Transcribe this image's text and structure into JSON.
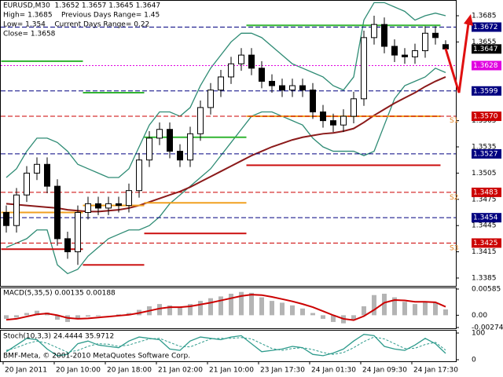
{
  "chart_data": {
    "type": "candlestick",
    "title": "EURUSD,M30  1.3652 1.3657 1.3645 1.3647",
    "info": [
      "High= 1.3685    Previous Days Range= 1.45",
      "Low= 1.354    Current Days Range= 0.22",
      "Close= 1.3658"
    ],
    "xticks": [
      {
        "value": 0,
        "label": "20 Jan 2011"
      },
      {
        "value": 5,
        "label": "20 Jan 10:00"
      },
      {
        "value": 10,
        "label": "20 Jan 18:00"
      },
      {
        "value": 15,
        "label": "21 Jan 02:00"
      },
      {
        "value": 20,
        "label": "21 Jan 10:00"
      },
      {
        "value": 25,
        "label": "23 Jan 17:30"
      },
      {
        "value": 30,
        "label": "24 Jan 01:30"
      },
      {
        "value": 35,
        "label": "24 Jan 09:30"
      },
      {
        "value": 40,
        "label": "24 Jan 17:30"
      }
    ],
    "ylim": [
      1.3376,
      1.3703
    ],
    "yticks": [
      1.3685,
      1.3655,
      1.3565,
      1.3535,
      1.3505,
      1.3475,
      1.3445,
      1.3415,
      1.3385
    ],
    "open": [
      1.346,
      1.3445,
      1.348,
      1.3505,
      1.3515,
      1.349,
      1.343,
      1.3415,
      1.346,
      1.347,
      1.3465,
      1.347,
      1.3468,
      1.3485,
      1.352,
      1.3545,
      1.3555,
      1.353,
      1.352,
      1.355,
      1.358,
      1.36,
      1.3615,
      1.363,
      1.364,
      1.3625,
      1.361,
      1.3605,
      1.36,
      1.3605,
      1.36,
      1.3575,
      1.3565,
      1.356,
      1.357,
      1.359,
      1.366,
      1.3675,
      1.365,
      1.364,
      1.3638,
      1.3645,
      1.3665,
      1.3652
    ],
    "high": [
      1.3468,
      1.3488,
      1.3513,
      1.3523,
      1.3523,
      1.3498,
      1.3438,
      1.3468,
      1.3478,
      1.3478,
      1.3478,
      1.3478,
      1.3493,
      1.3528,
      1.3553,
      1.3563,
      1.3563,
      1.3538,
      1.3558,
      1.3588,
      1.3608,
      1.3623,
      1.3638,
      1.3648,
      1.3648,
      1.3633,
      1.3618,
      1.3613,
      1.3613,
      1.3613,
      1.3608,
      1.3583,
      1.3573,
      1.3578,
      1.3598,
      1.3668,
      1.3685,
      1.3683,
      1.3658,
      1.3648,
      1.3653,
      1.3673,
      1.3673,
      1.3657
    ],
    "low": [
      1.3437,
      1.3437,
      1.3472,
      1.3497,
      1.3482,
      1.3422,
      1.3407,
      1.34,
      1.3452,
      1.3457,
      1.3457,
      1.346,
      1.346,
      1.3477,
      1.3512,
      1.3537,
      1.3522,
      1.3512,
      1.3512,
      1.3542,
      1.3572,
      1.3592,
      1.3607,
      1.3622,
      1.3617,
      1.3602,
      1.3597,
      1.3592,
      1.3592,
      1.3592,
      1.3567,
      1.3557,
      1.3552,
      1.3552,
      1.3562,
      1.3582,
      1.3652,
      1.3642,
      1.3632,
      1.363,
      1.363,
      1.3637,
      1.3652,
      1.3645
    ],
    "close": [
      1.3445,
      1.348,
      1.3505,
      1.3515,
      1.349,
      1.343,
      1.3415,
      1.346,
      1.347,
      1.3465,
      1.347,
      1.3468,
      1.3485,
      1.352,
      1.3545,
      1.3555,
      1.353,
      1.352,
      1.355,
      1.358,
      1.36,
      1.3615,
      1.363,
      1.364,
      1.3625,
      1.361,
      1.3605,
      1.36,
      1.3605,
      1.36,
      1.3575,
      1.3565,
      1.356,
      1.357,
      1.359,
      1.366,
      1.3675,
      1.365,
      1.364,
      1.3638,
      1.3645,
      1.3665,
      1.366,
      1.3647
    ],
    "overlays": [
      {
        "style": "line",
        "color": "#2e8b74",
        "values": [
          1.35,
          1.351,
          1.353,
          1.3545,
          1.3545,
          1.354,
          1.353,
          1.3515,
          1.351,
          1.3505,
          1.35,
          1.35,
          1.351,
          1.3535,
          1.356,
          1.3575,
          1.3575,
          1.357,
          1.358,
          1.3605,
          1.3625,
          1.364,
          1.3655,
          1.3665,
          1.3665,
          1.366,
          1.365,
          1.364,
          1.363,
          1.3625,
          1.362,
          1.3615,
          1.3605,
          1.36,
          1.3615,
          1.368,
          1.37,
          1.37,
          1.3695,
          1.369,
          1.368,
          1.3685,
          1.3688,
          1.3685
        ]
      },
      {
        "style": "line",
        "color": "#2e8b74",
        "values": [
          1.342,
          1.3425,
          1.343,
          1.344,
          1.344,
          1.34,
          1.339,
          1.3395,
          1.341,
          1.342,
          1.343,
          1.3435,
          1.344,
          1.344,
          1.3445,
          1.3455,
          1.347,
          1.348,
          1.349,
          1.35,
          1.351,
          1.3525,
          1.354,
          1.3555,
          1.357,
          1.3575,
          1.3575,
          1.357,
          1.3565,
          1.356,
          1.3545,
          1.3535,
          1.353,
          1.353,
          1.353,
          1.3525,
          1.353,
          1.356,
          1.359,
          1.3605,
          1.361,
          1.3615,
          1.3625,
          1.362
        ]
      },
      {
        "style": "line",
        "color": "#8b1a1a",
        "values": [
          1.347,
          1.3469,
          1.3468,
          1.3467,
          1.3466,
          1.3465,
          1.3463,
          1.3462,
          1.3461,
          1.3461,
          1.3462,
          1.3463,
          1.3465,
          1.3468,
          1.3472,
          1.3476,
          1.348,
          1.3484,
          1.3489,
          1.3495,
          1.3501,
          1.3507,
          1.3513,
          1.3519,
          1.3525,
          1.353,
          1.3535,
          1.3539,
          1.3543,
          1.3546,
          1.3548,
          1.355,
          1.3551,
          1.3553,
          1.3556,
          1.3563,
          1.3571,
          1.3578,
          1.3585,
          1.3591,
          1.3597,
          1.3604,
          1.361,
          1.3615
        ]
      },
      {
        "style": "step",
        "color": "#32b432",
        "values": [
          1.3633,
          1.3633,
          1.3633,
          1.3633,
          1.3633,
          1.3633,
          1.3633,
          1.3633,
          1.3597,
          1.3597,
          1.3597,
          1.3597,
          1.3597,
          1.3597,
          1.3546,
          1.3546,
          1.3546,
          1.3546,
          1.3546,
          1.3546,
          1.3546,
          1.3546,
          1.3546,
          1.3546,
          1.3674,
          1.3674,
          1.3674,
          1.3674,
          1.3674,
          1.3674,
          1.3674,
          1.3674,
          1.3674,
          1.3674,
          1.3674,
          1.3674,
          1.3674,
          1.3674,
          1.3674,
          1.3674,
          1.3674,
          1.3674,
          1.3674,
          null
        ]
      },
      {
        "style": "step",
        "color": "#f0a020",
        "values": [
          1.346,
          1.346,
          1.346,
          1.346,
          1.346,
          1.346,
          1.346,
          1.346,
          1.3468,
          1.3468,
          1.3468,
          1.3468,
          1.3468,
          1.3468,
          1.3471,
          1.3471,
          1.3471,
          1.3471,
          1.3471,
          1.3471,
          1.3471,
          1.3471,
          1.3471,
          1.3471,
          1.357,
          1.357,
          1.357,
          1.357,
          1.357,
          1.357,
          1.357,
          1.357,
          1.357,
          1.357,
          1.357,
          1.357,
          1.357,
          1.357,
          1.357,
          1.357,
          1.357,
          1.357,
          1.357,
          null
        ]
      },
      {
        "style": "step",
        "color": "#cc1010",
        "values": [
          1.3418,
          1.3418,
          1.3418,
          1.3418,
          1.3418,
          1.3418,
          1.3418,
          1.3418,
          1.34,
          1.34,
          1.34,
          1.34,
          1.34,
          1.34,
          1.3436,
          1.3436,
          1.3436,
          1.3436,
          1.3436,
          1.3436,
          1.3436,
          1.3436,
          1.3436,
          1.3436,
          1.3514,
          1.3514,
          1.3514,
          1.3514,
          1.3514,
          1.3514,
          1.3514,
          1.3514,
          1.3514,
          1.3514,
          1.3514,
          1.3514,
          1.3514,
          1.3514,
          1.3514,
          1.3514,
          1.3514,
          1.3514,
          1.3514,
          null
        ]
      }
    ],
    "levels": [
      {
        "value": 1.3672,
        "color": "#000080",
        "dash": "6 3"
      },
      {
        "value": 1.3628,
        "color": "#e000e0",
        "dash": "2 2"
      },
      {
        "value": 1.3599,
        "color": "#000080",
        "dash": "6 3"
      },
      {
        "value": 1.357,
        "label": "1.3570",
        "color": "#cc0000",
        "dash": "6 3"
      },
      {
        "value": 1.3527,
        "color": "#000080",
        "dash": "6 3"
      },
      {
        "value": 1.3483,
        "color": "#cc0000",
        "dash": "6 3"
      },
      {
        "value": 1.3454,
        "color": "#000080",
        "dash": "6 3"
      },
      {
        "value": 1.3425,
        "color": "#cc0000",
        "dash": "6 3"
      }
    ],
    "annotations": [
      {
        "text": "S1",
        "value": 1.3565
      },
      {
        "text": "S2",
        "value": 1.3477
      },
      {
        "text": "S3",
        "value": 1.3419
      }
    ],
    "macd": {
      "title": "MACD(5,35,5) 0.00135 0.00188",
      "ylim": [
        -0.00274,
        0.00585
      ],
      "yticks": [
        0.00585,
        {
          "value": 0,
          "label": "0.00"
        },
        -0.00274
      ],
      "histogram": {
        "color": "#b4b4b4",
        "values": [
          -0.0008,
          -0.0005,
          0.0005,
          0.001,
          0.0006,
          -0.001,
          -0.0015,
          -0.0008,
          -0.0003,
          -0.0002,
          0.0,
          0.0002,
          0.0005,
          0.0012,
          0.002,
          0.0025,
          0.0022,
          0.0018,
          0.0025,
          0.0032,
          0.0038,
          0.0042,
          0.0048,
          0.0052,
          0.005,
          0.004,
          0.0032,
          0.0028,
          0.0022,
          0.0015,
          0.0005,
          -0.0008,
          -0.0015,
          -0.0018,
          -0.001,
          0.002,
          0.0045,
          0.0048,
          0.004,
          0.003,
          0.0025,
          0.003,
          0.0028,
          0.0013
        ]
      },
      "signal": {
        "color": "#cc0000",
        "values": [
          -0.001,
          -0.0008,
          -0.0003,
          0.0002,
          0.0004,
          0.0,
          -0.0006,
          -0.0008,
          -0.0007,
          -0.0005,
          -0.0003,
          -0.0001,
          0.0001,
          0.0005,
          0.001,
          0.0015,
          0.0018,
          0.0018,
          0.002,
          0.0024,
          0.0028,
          0.0033,
          0.0038,
          0.0043,
          0.0046,
          0.0045,
          0.0041,
          0.0036,
          0.0031,
          0.0025,
          0.0018,
          0.0009,
          0.0,
          -0.0008,
          -0.0011,
          -0.0002,
          0.0012,
          0.0028,
          0.0034,
          0.0033,
          0.003,
          0.003,
          0.0029,
          0.0019
        ]
      }
    },
    "stoch": {
      "title": "Stoch(10,3,3) 24.4444 35.9712",
      "ylim": [
        0,
        100
      ],
      "yticks": [
        100,
        0
      ],
      "main": {
        "color": "#2e9b8c",
        "values": [
          30,
          55,
          80,
          75,
          40,
          15,
          20,
          60,
          70,
          55,
          50,
          45,
          70,
          85,
          80,
          75,
          40,
          35,
          70,
          85,
          80,
          75,
          85,
          90,
          60,
          30,
          35,
          40,
          50,
          45,
          20,
          15,
          25,
          40,
          70,
          95,
          90,
          50,
          40,
          35,
          55,
          80,
          60,
          24
        ]
      },
      "signal": {
        "color": "#2e9b8c",
        "values": [
          35,
          45,
          60,
          70,
          62,
          45,
          28,
          35,
          50,
          60,
          58,
          50,
          55,
          67,
          78,
          80,
          65,
          50,
          48,
          63,
          78,
          80,
          80,
          83,
          78,
          60,
          42,
          35,
          42,
          45,
          38,
          27,
          20,
          27,
          45,
          68,
          85,
          78,
          60,
          42,
          43,
          57,
          65,
          36
        ]
      }
    },
    "footer": "BMF-Meta, © 2001-2010 MetaQuotes Software Corp."
  }
}
